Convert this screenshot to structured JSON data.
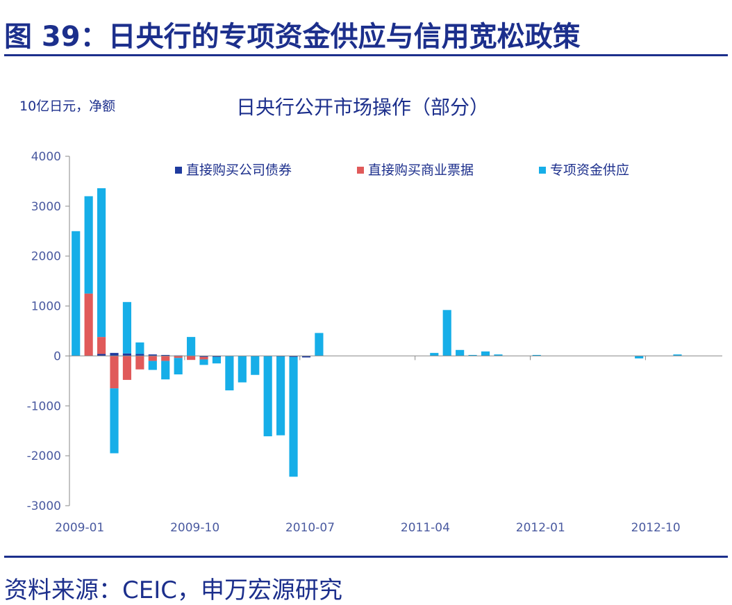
{
  "figure": {
    "title": "图 39：日央行的专项资金供应与信用宽松政策",
    "source": "资料来源：CEIC，申万宏源研究"
  },
  "colors": {
    "brand": "#1c2f8c",
    "corp_bond": "#1f3b9e",
    "cp": "#e05a5a",
    "special": "#16aee8",
    "axis_text": "#4a5aa0"
  },
  "chart_data": {
    "type": "bar",
    "stacked": true,
    "title": "日央行公开市场操作（部分）",
    "unit_label": "10亿日元，净额",
    "ylim": [
      -3000,
      4000
    ],
    "yticks": [
      -3000,
      -2000,
      -1000,
      0,
      1000,
      2000,
      3000,
      4000
    ],
    "ytick_labels": [
      "-3000",
      "-2000",
      "-1000",
      "0",
      "1000",
      "2000",
      "3000",
      "4000"
    ],
    "xtick_labels": [
      "2009-01",
      "2009-10",
      "2010-07",
      "2011-04",
      "2012-01",
      "2012-10"
    ],
    "xtick_index": [
      0,
      9,
      18,
      27,
      36,
      45
    ],
    "legend_position": "top",
    "categories": [
      "2009-01",
      "2009-02",
      "2009-03",
      "2009-04",
      "2009-05",
      "2009-06",
      "2009-07",
      "2009-08",
      "2009-09",
      "2009-10",
      "2009-11",
      "2009-12",
      "2010-01",
      "2010-02",
      "2010-03",
      "2010-04",
      "2010-05",
      "2010-06",
      "2010-07",
      "2010-08",
      "2010-09",
      "2010-10",
      "2010-11",
      "2010-12",
      "2011-01",
      "2011-02",
      "2011-03",
      "2011-04",
      "2011-05",
      "2011-06",
      "2011-07",
      "2011-08",
      "2011-09",
      "2011-10",
      "2011-11",
      "2011-12",
      "2012-01",
      "2012-02",
      "2012-03",
      "2012-04",
      "2012-05",
      "2012-06",
      "2012-07",
      "2012-08",
      "2012-09",
      "2012-10",
      "2012-11",
      "2012-12",
      "2013-01",
      "2013-02",
      "2013-03"
    ],
    "series": [
      {
        "name": "直接购买公司债券",
        "color_key": "corp_bond",
        "values": [
          0,
          0,
          40,
          60,
          50,
          40,
          30,
          20,
          10,
          0,
          -20,
          -20,
          0,
          0,
          0,
          0,
          -10,
          -20,
          -30,
          0,
          0,
          0,
          0,
          0,
          0,
          0,
          0,
          0,
          0,
          0,
          0,
          0,
          0,
          0,
          0,
          0,
          0,
          0,
          0,
          0,
          0,
          0,
          0,
          0,
          0,
          0,
          0,
          0,
          0,
          0,
          0
        ]
      },
      {
        "name": "直接购买商业票据",
        "color_key": "cp",
        "values": [
          0,
          1250,
          340,
          -650,
          -480,
          -270,
          -100,
          -100,
          -40,
          -80,
          -50,
          0,
          0,
          0,
          0,
          0,
          0,
          0,
          0,
          0,
          0,
          0,
          0,
          0,
          0,
          0,
          0,
          0,
          0,
          0,
          0,
          0,
          0,
          0,
          0,
          0,
          0,
          0,
          0,
          0,
          0,
          0,
          0,
          0,
          0,
          0,
          0,
          0,
          0,
          0,
          0
        ]
      },
      {
        "name": "专项资金供应",
        "color_key": "special",
        "values": [
          2500,
          1950,
          2980,
          -1300,
          1030,
          230,
          -180,
          -370,
          -330,
          380,
          -110,
          -130,
          -690,
          -530,
          -380,
          -1610,
          -1580,
          -2400,
          0,
          460,
          0,
          0,
          0,
          0,
          0,
          0,
          0,
          0,
          60,
          920,
          120,
          20,
          90,
          30,
          0,
          0,
          20,
          0,
          0,
          0,
          0,
          0,
          0,
          0,
          -50,
          0,
          0,
          30,
          0,
          0,
          0
        ]
      }
    ]
  }
}
